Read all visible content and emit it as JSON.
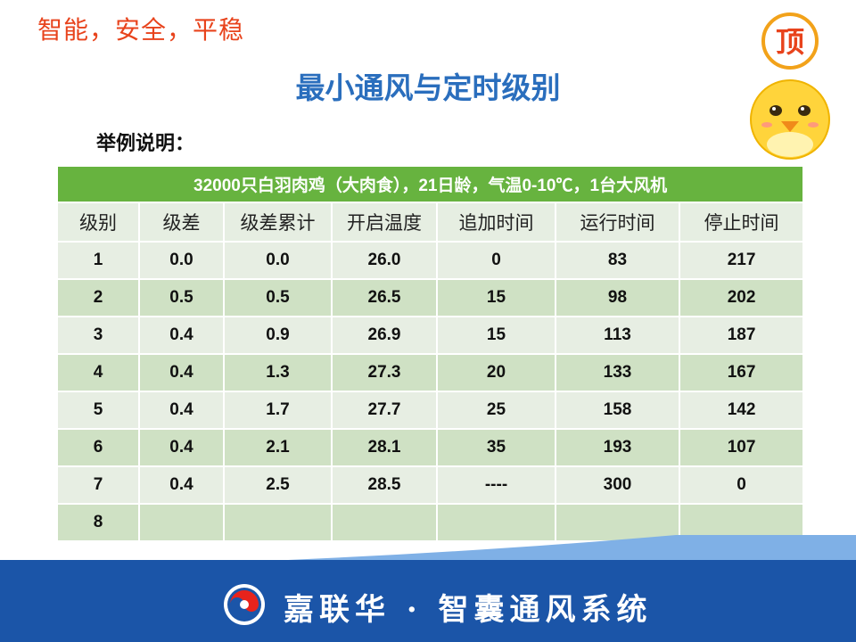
{
  "tagline": "智能，安全，平稳",
  "title": "最小通风与定时级别",
  "subtitle": "举例说明：",
  "mascot_text": "顶",
  "brand": "嘉联华 · 智囊通风系统",
  "table": {
    "caption": "32000只白羽肉鸡（大肉食），21日龄，气温0-10℃，1台大风机",
    "headers": [
      "级别",
      "级差",
      "级差累计",
      "开启温度",
      "追加时间",
      "运行时间",
      "停止时间"
    ],
    "rows": [
      [
        "1",
        "0.0",
        "0.0",
        "26.0",
        "0",
        "83",
        "217"
      ],
      [
        "2",
        "0.5",
        "0.5",
        "26.5",
        "15",
        "98",
        "202"
      ],
      [
        "3",
        "0.4",
        "0.9",
        "26.9",
        "15",
        "113",
        "187"
      ],
      [
        "4",
        "0.4",
        "1.3",
        "27.3",
        "20",
        "133",
        "167"
      ],
      [
        "5",
        "0.4",
        "1.7",
        "27.7",
        "25",
        "158",
        "142"
      ],
      [
        "6",
        "0.4",
        "2.1",
        "28.1",
        "35",
        "193",
        "107"
      ],
      [
        "7",
        "0.4",
        "2.5",
        "28.5",
        "----",
        "300",
        "0"
      ],
      [
        "8",
        "",
        "",
        "",
        "",
        "",
        ""
      ]
    ]
  },
  "colors": {
    "tagline": "#e8431c",
    "title": "#2a6ebd",
    "caption_bg": "#67b33f",
    "header_bg": "#e6eee2",
    "row_light": "#e7eee3",
    "row_dark": "#cfe1c4",
    "band_dark": "#1b55a8"
  }
}
